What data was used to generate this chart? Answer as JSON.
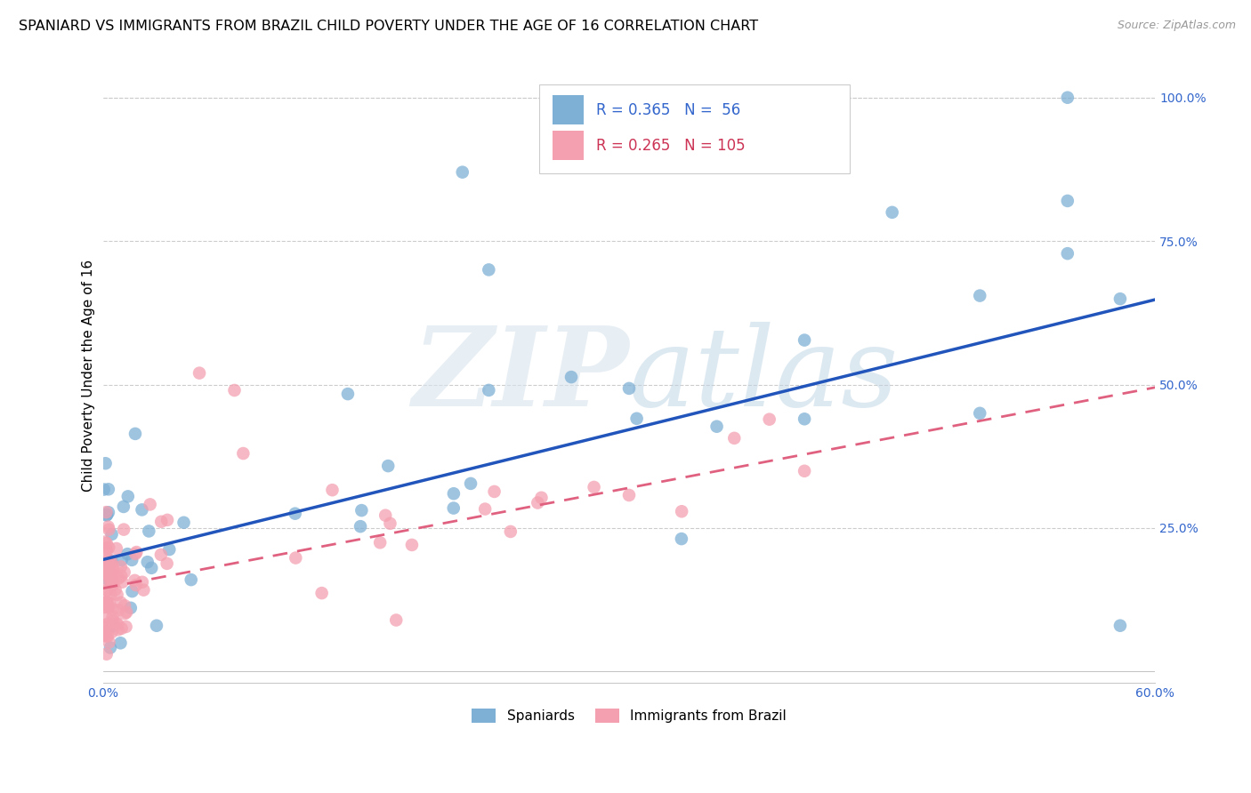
{
  "title": "SPANIARD VS IMMIGRANTS FROM BRAZIL CHILD POVERTY UNDER THE AGE OF 16 CORRELATION CHART",
  "source": "Source: ZipAtlas.com",
  "ylabel": "Child Poverty Under the Age of 16",
  "xlim": [
    0.0,
    0.6
  ],
  "ylim": [
    -0.02,
    1.05
  ],
  "xtick_positions": [
    0.0,
    0.1,
    0.2,
    0.3,
    0.4,
    0.5,
    0.6
  ],
  "xtick_labels": [
    "0.0%",
    "",
    "",
    "",
    "",
    "",
    "60.0%"
  ],
  "ytick_positions": [
    0.0,
    0.25,
    0.5,
    0.75,
    1.0
  ],
  "ytick_labels": [
    "",
    "25.0%",
    "50.0%",
    "75.0%",
    "100.0%"
  ],
  "spaniards_color": "#7EB0D5",
  "brazil_color": "#F4A0B0",
  "spaniards_line_color": "#2255BB",
  "brazil_line_color": "#E06080",
  "spaniards_R": 0.365,
  "spaniards_N": 56,
  "brazil_R": 0.265,
  "brazil_N": 105,
  "sp_line_y0": 0.195,
  "sp_line_y1": 0.648,
  "br_line_y0": 0.145,
  "br_line_y1": 0.495,
  "watermark_zip": "ZIP",
  "watermark_atlas": "atlas",
  "bg_color": "#FFFFFF",
  "grid_color": "#DDDDDD",
  "title_fontsize": 11.5,
  "axis_label_fontsize": 11,
  "tick_fontsize": 10,
  "legend_fontsize": 12,
  "source_fontsize": 9
}
